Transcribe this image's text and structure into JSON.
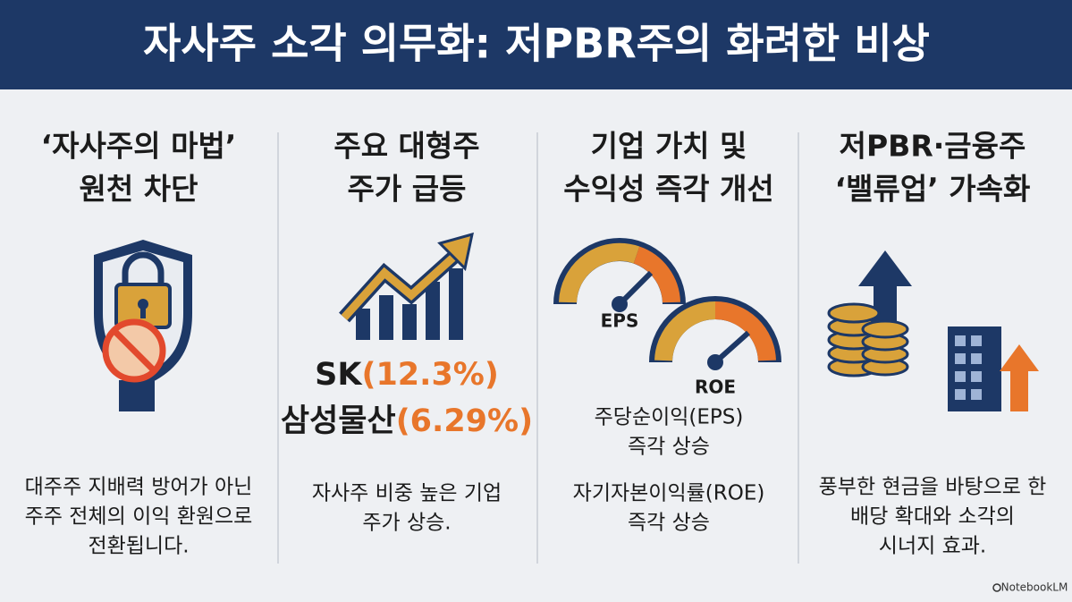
{
  "title": "자사주 소각 의무화: 저PBR주의 화려한 비상",
  "columns": [
    {
      "heading": [
        "‘자사주의 마법’",
        "원천 차단"
      ],
      "body": [
        "대주주 지배력 방어가 아닌",
        "주주 전체의 이익 환원으로",
        "전환됩니다."
      ]
    },
    {
      "heading": [
        "주요 대형주",
        "주가 급등"
      ],
      "highlights": [
        {
          "name": "SK",
          "change": "(12.3%)"
        },
        {
          "name": "삼성물산",
          "change": "(6.29%)"
        }
      ],
      "body": [
        "자사주 비중 높은 기업",
        "주가 상승."
      ]
    },
    {
      "heading": [
        "기업 가치 및",
        "수익성 즉각 개선"
      ],
      "gauges": [
        "EPS",
        "ROE"
      ],
      "body": [
        "주당순이익(EPS)",
        "즉각 상승",
        "자기자본이익률(ROE)",
        "즉각 상승"
      ]
    },
    {
      "heading": [
        "저PBR·금융주",
        "‘밸류업’ 가속화"
      ],
      "body": [
        "풍부한 현금을 바탕으로 한",
        "배당 확대와 소각의",
        "시너지 효과."
      ]
    }
  ],
  "footer": "NotebookLM"
}
